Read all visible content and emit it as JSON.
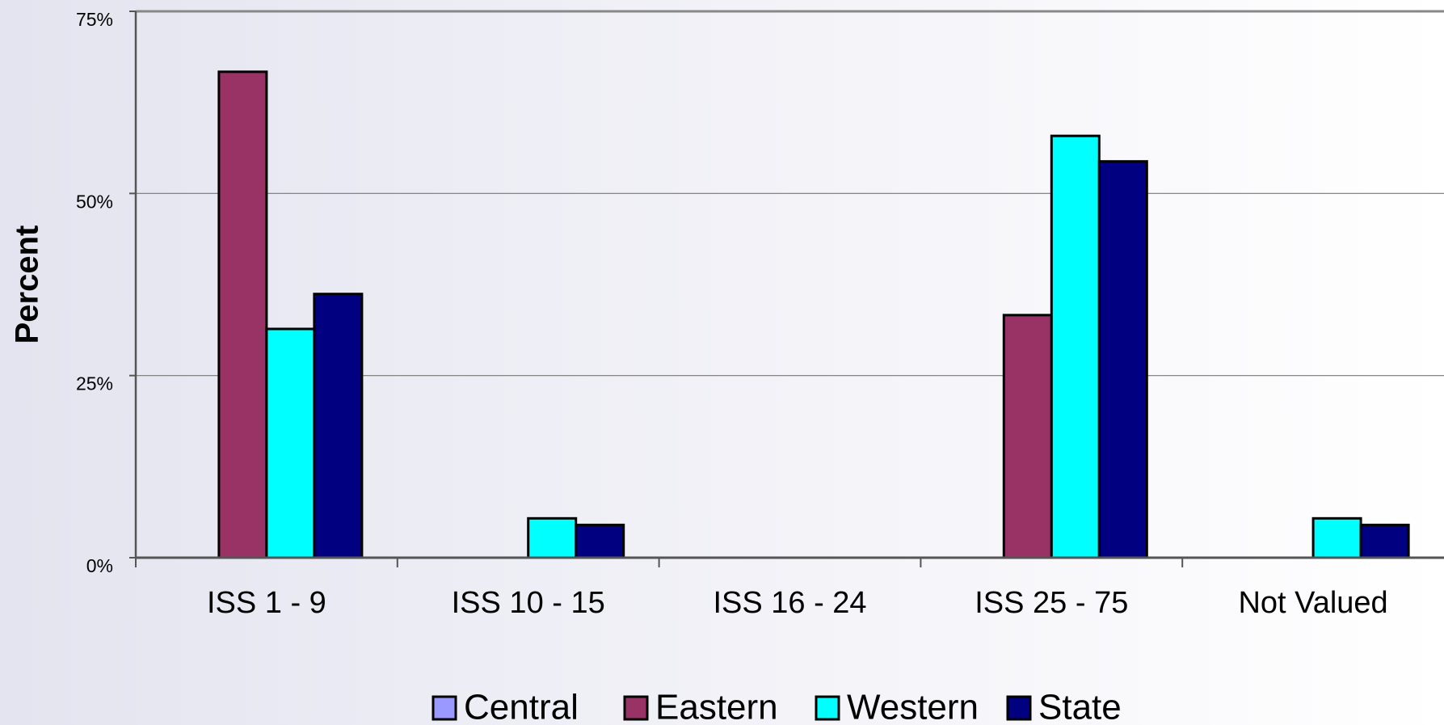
{
  "chart_data": {
    "type": "bar",
    "y_label": "Percent",
    "categories": [
      "ISS 1 - 9",
      "ISS 10 - 15",
      "ISS 16 - 24",
      "ISS 25 - 75",
      "Not Valued"
    ],
    "series": [
      {
        "name": "Central",
        "color": "#9999ff",
        "values": [
          0,
          0,
          0,
          0,
          0
        ]
      },
      {
        "name": "Eastern",
        "color": "#993366",
        "values": [
          66.7,
          0,
          0,
          33.3,
          0
        ]
      },
      {
        "name": "Western",
        "color": "#00ffff",
        "values": [
          31.4,
          5.4,
          0,
          57.9,
          5.4
        ]
      },
      {
        "name": "State",
        "color": "#000080",
        "values": [
          36.2,
          4.5,
          0,
          54.4,
          4.5
        ]
      }
    ],
    "ylim": [
      0,
      75
    ],
    "yticks": [
      {
        "value": 0,
        "label": "0%"
      },
      {
        "value": 25,
        "label": "25%"
      },
      {
        "value": 50,
        "label": "50%"
      },
      {
        "value": 75,
        "label": "75%"
      }
    ],
    "grid": true,
    "legend": "bottom"
  }
}
